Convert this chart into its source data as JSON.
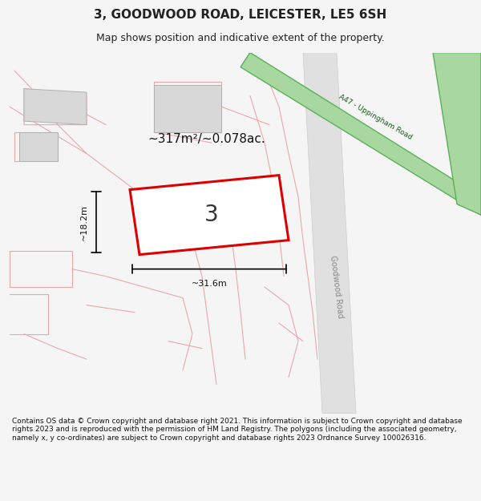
{
  "title": "3, GOODWOOD ROAD, LEICESTER, LE5 6SH",
  "subtitle": "Map shows position and indicative extent of the property.",
  "area_text": "~317m²/~0.078ac.",
  "width_label": "~31.6m",
  "height_label": "~18.2m",
  "plot_number": "3",
  "road_label_goodwood": "Goodwood Road",
  "road_label_a47": "A47 - Uppingham Road",
  "footer_text": "Contains OS data © Crown copyright and database right 2021. This information is subject to Crown copyright and database rights 2023 and is reproduced with the permission of HM Land Registry. The polygons (including the associated geometry, namely x, y co-ordinates) are subject to Crown copyright and database rights 2023 Ordnance Survey 100026316.",
  "bg_color": "#f5f5f5",
  "map_bg": "#f0eeea",
  "road_fill_green": "#a8d8a0",
  "road_stroke_green": "#5ab05a",
  "building_fill": "#d8d8d8",
  "building_stroke": "#c0c0c0",
  "plot_stroke_red": "#dd0000",
  "plot_fill": "#f8f8f8",
  "road_lines_pink": "#e8a0a0",
  "text_color": "#222222",
  "footer_bg": "#ffffff"
}
